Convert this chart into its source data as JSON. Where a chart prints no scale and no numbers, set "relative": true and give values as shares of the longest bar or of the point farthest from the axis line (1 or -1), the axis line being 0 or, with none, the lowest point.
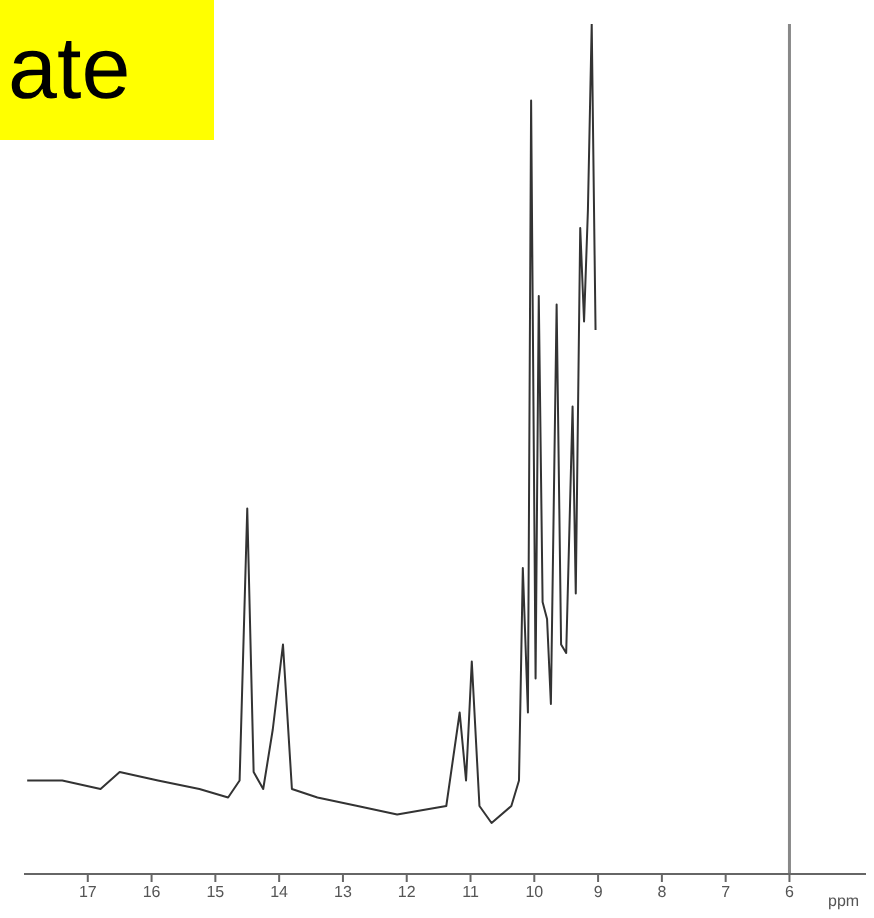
{
  "chart_data": {
    "type": "line",
    "title": "ate",
    "xlabel": "ppm",
    "relative": true,
    "x": [
      17.95,
      17.4,
      16.8,
      16.5,
      15.9,
      15.25,
      14.8,
      14.62,
      14.5,
      14.4,
      14.25,
      14.1,
      13.94,
      13.8,
      13.4,
      12.77,
      12.15,
      11.38,
      11.17,
      11.07,
      10.98,
      10.86,
      10.67,
      10.36,
      10.24,
      10.18,
      10.1,
      10.05,
      9.98,
      9.93,
      9.87,
      9.8,
      9.74,
      9.65,
      9.58,
      9.5,
      9.4,
      9.35,
      9.28,
      9.22,
      9.16,
      9.1,
      9.04
    ],
    "series": [
      {
        "color": "#333333",
        "values": [
          0.11,
          0.11,
          0.1,
          0.12,
          0.11,
          0.1,
          0.09,
          0.11,
          0.43,
          0.12,
          0.1,
          0.17,
          0.27,
          0.1,
          0.09,
          0.08,
          0.07,
          0.08,
          0.19,
          0.11,
          0.25,
          0.08,
          0.06,
          0.08,
          0.11,
          0.36,
          0.19,
          0.91,
          0.23,
          0.68,
          0.32,
          0.3,
          0.2,
          0.67,
          0.27,
          0.26,
          0.55,
          0.33,
          0.76,
          0.65,
          0.78,
          1.0,
          0.64
        ]
      }
    ],
    "xlim": [
      18,
      4.8
    ],
    "xticks": [
      17,
      16,
      15,
      14,
      13,
      12,
      11,
      10,
      9,
      8,
      7,
      6
    ],
    "ref_lines": [
      {
        "axis": "x",
        "value": 6,
        "color": "#888888"
      }
    ]
  }
}
